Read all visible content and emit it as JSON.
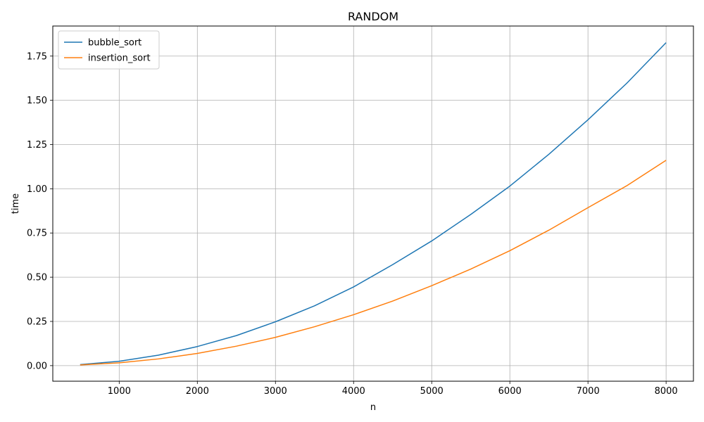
{
  "chart_data": {
    "type": "line",
    "title": "RANDOM",
    "xlabel": "n",
    "ylabel": "time",
    "x": [
      500,
      1000,
      1500,
      2000,
      2500,
      3000,
      3500,
      4000,
      4500,
      5000,
      5500,
      6000,
      6500,
      7000,
      7500,
      8000
    ],
    "series": [
      {
        "name": "bubble_sort",
        "color": "#1f77b4",
        "values": [
          0.006,
          0.025,
          0.059,
          0.108,
          0.17,
          0.248,
          0.338,
          0.445,
          0.571,
          0.705,
          0.855,
          1.015,
          1.195,
          1.39,
          1.598,
          1.826
        ]
      },
      {
        "name": "insertion_sort",
        "color": "#ff7f0e",
        "values": [
          0.004,
          0.016,
          0.038,
          0.069,
          0.11,
          0.16,
          0.22,
          0.288,
          0.365,
          0.452,
          0.546,
          0.65,
          0.766,
          0.893,
          1.018,
          1.161
        ]
      }
    ],
    "xlim": [
      150,
      8350
    ],
    "ylim": [
      -0.088,
      1.92
    ],
    "xticks": [
      1000,
      2000,
      3000,
      4000,
      5000,
      6000,
      7000,
      8000
    ],
    "yticks": [
      0.0,
      0.25,
      0.5,
      0.75,
      1.0,
      1.25,
      1.5,
      1.75
    ],
    "grid": true,
    "legend_position": "top-left"
  }
}
